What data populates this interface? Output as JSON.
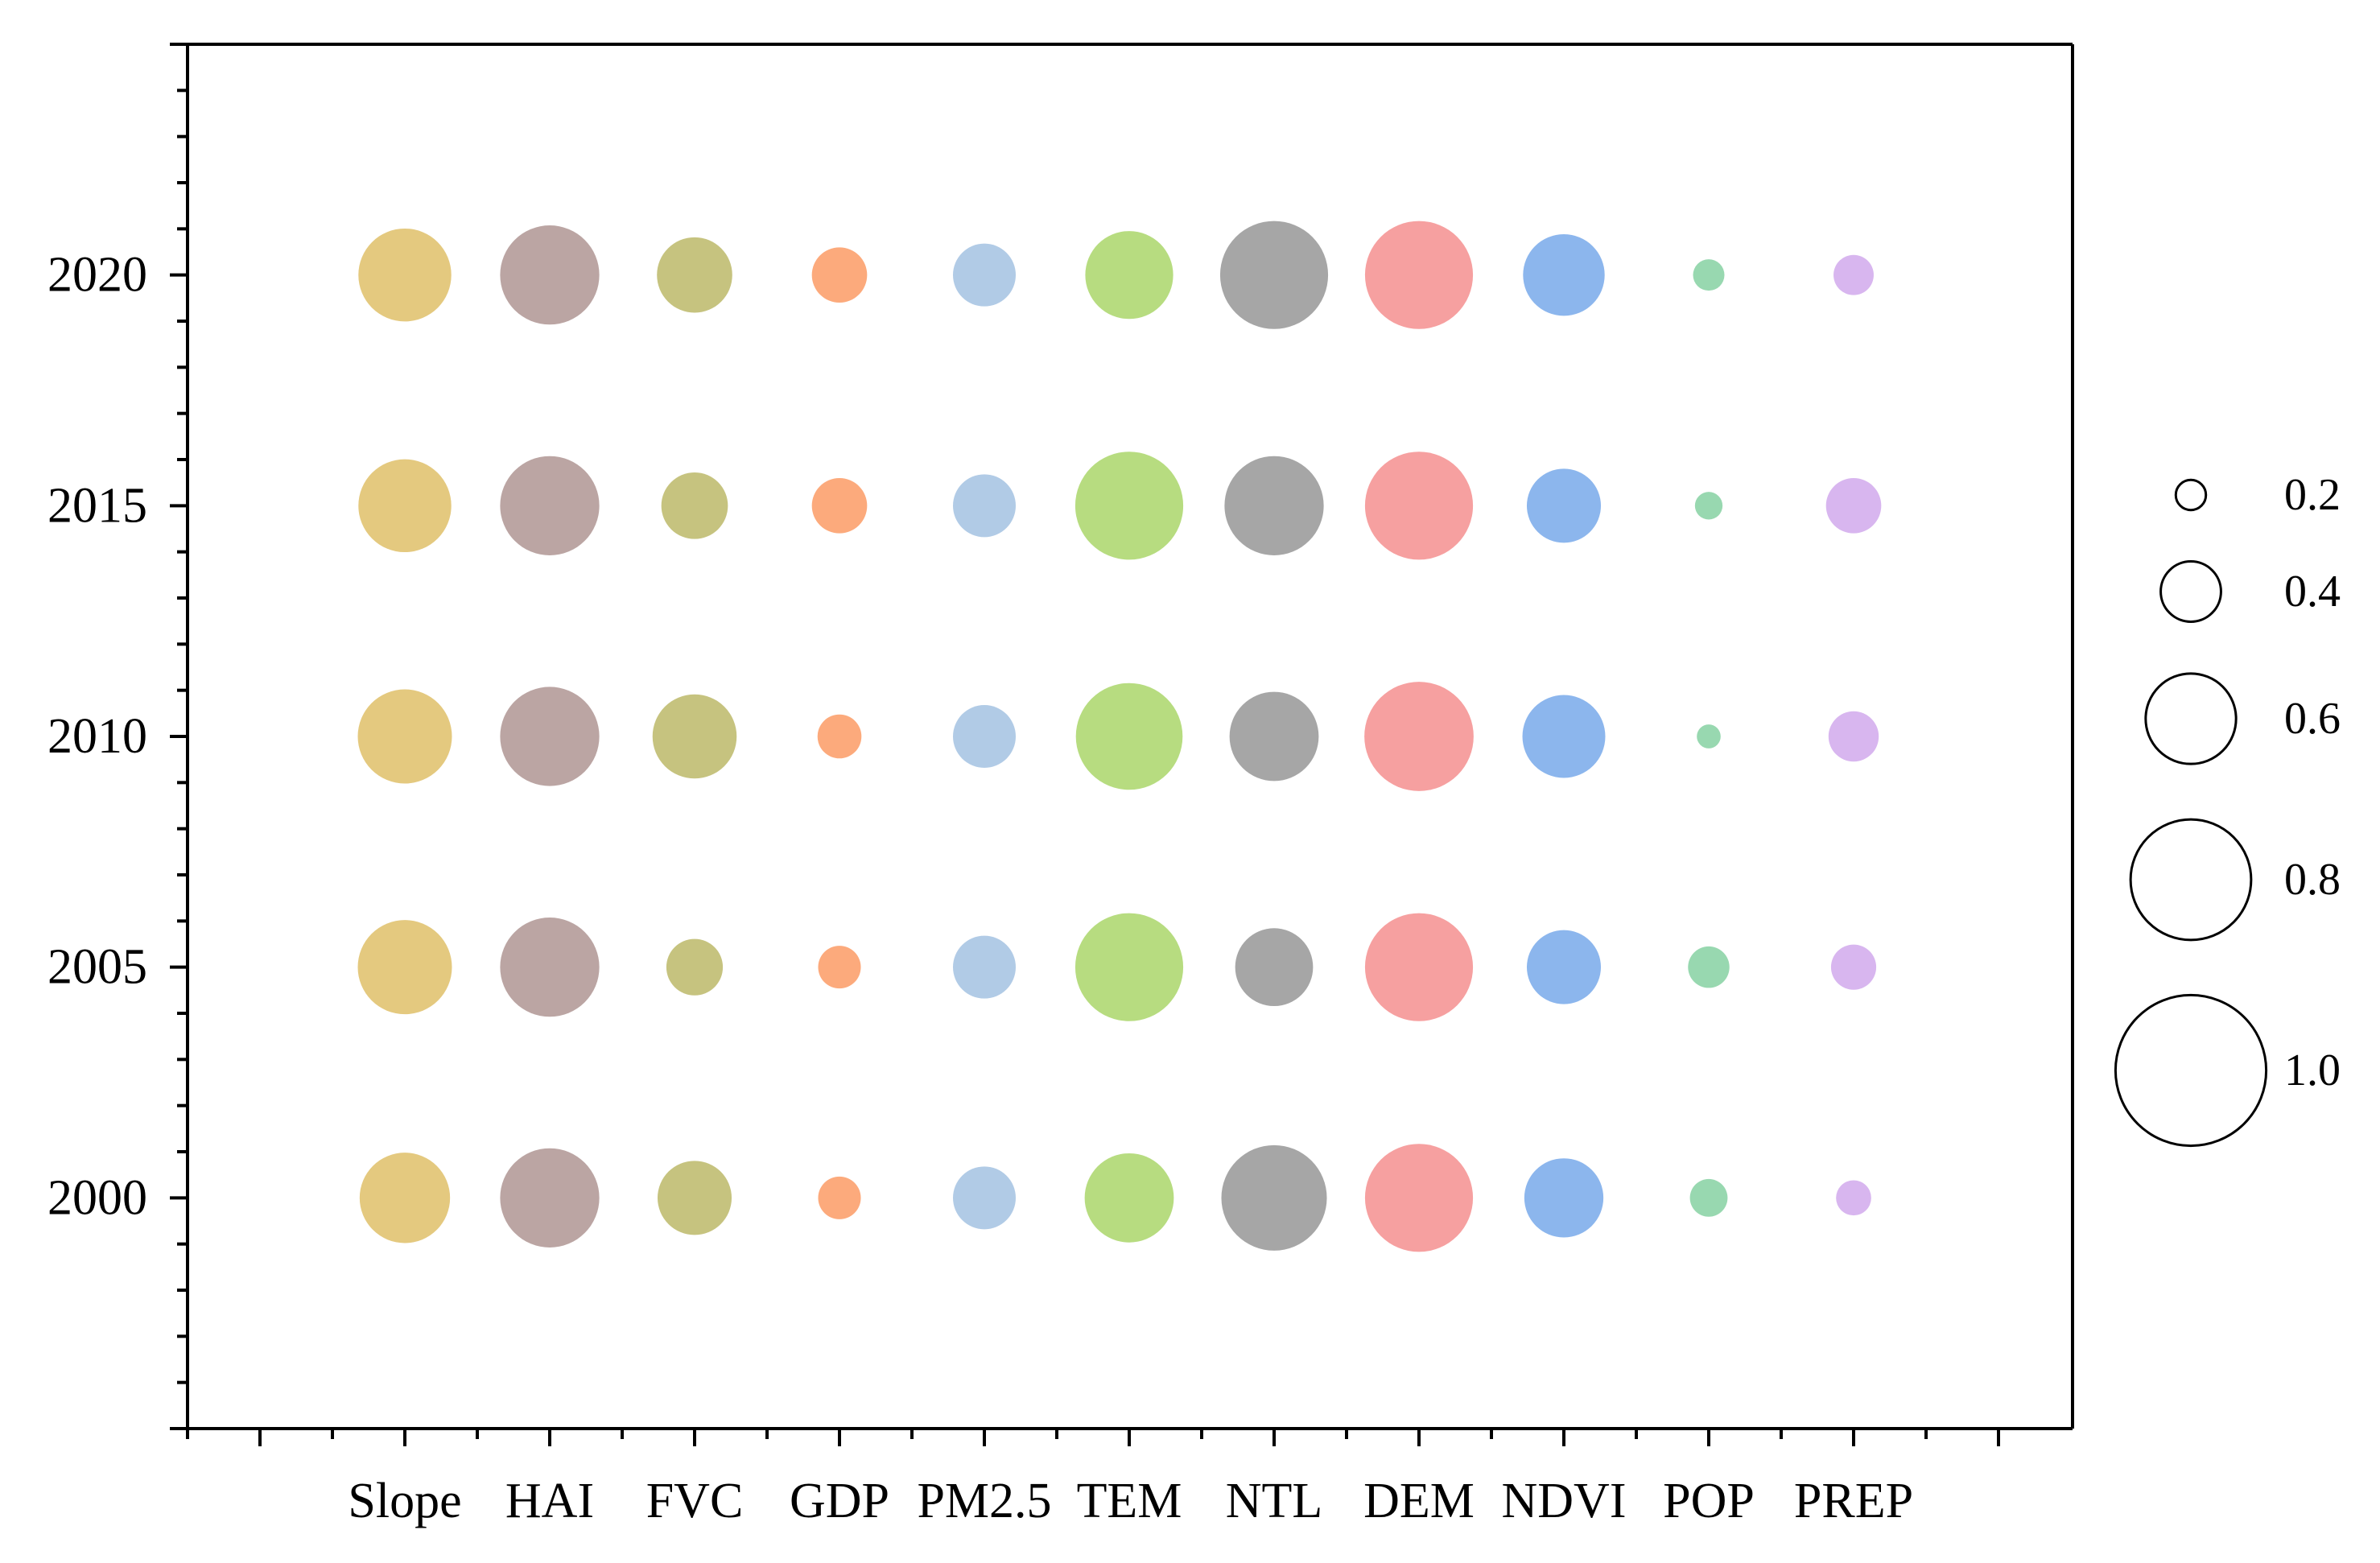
{
  "chart_data": {
    "type": "bubble",
    "categories": [
      "Slope",
      "HAI",
      "FVC",
      "GDP",
      "PM2.5",
      "TEM",
      "NTL",
      "DEM",
      "NDVI",
      "POP",
      "PREP"
    ],
    "years": [
      "2000",
      "2005",
      "2010",
      "2015",
      "2020"
    ],
    "ylim": [
      1995,
      2025
    ],
    "colors": {
      "Slope": "#e4c97f",
      "HAI": "#bba5a3",
      "FVC": "#c6c37f",
      "GDP": "#fcaa7c",
      "PM2.5": "#b1cbe6",
      "TEM": "#b7dc80",
      "NTL": "#a6a6a6",
      "DEM": "#f6a0a0",
      "NDVI": "#8cb6ed",
      "POP": "#98d8b0",
      "PREP": "#d8b6ef"
    },
    "values": {
      "2020": {
        "Slope": 0.74,
        "HAI": 0.79,
        "FVC": 0.6,
        "GDP": 0.44,
        "PM2.5": 0.5,
        "TEM": 0.7,
        "NTL": 0.86,
        "DEM": 0.86,
        "NDVI": 0.65,
        "POP": 0.25,
        "PREP": 0.32
      },
      "2015": {
        "Slope": 0.74,
        "HAI": 0.79,
        "FVC": 0.53,
        "GDP": 0.44,
        "PM2.5": 0.5,
        "TEM": 0.86,
        "NTL": 0.79,
        "DEM": 0.86,
        "NDVI": 0.59,
        "POP": 0.22,
        "PREP": 0.44
      },
      "2010": {
        "Slope": 0.75,
        "HAI": 0.79,
        "FVC": 0.67,
        "GDP": 0.35,
        "PM2.5": 0.5,
        "TEM": 0.85,
        "NTL": 0.71,
        "DEM": 0.87,
        "NDVI": 0.66,
        "POP": 0.19,
        "PREP": 0.4
      },
      "2005": {
        "Slope": 0.75,
        "HAI": 0.79,
        "FVC": 0.45,
        "GDP": 0.34,
        "PM2.5": 0.5,
        "TEM": 0.86,
        "NTL": 0.62,
        "DEM": 0.86,
        "NDVI": 0.59,
        "POP": 0.33,
        "PREP": 0.36
      },
      "2000": {
        "Slope": 0.72,
        "HAI": 0.79,
        "FVC": 0.59,
        "GDP": 0.34,
        "PM2.5": 0.5,
        "TEM": 0.71,
        "NTL": 0.84,
        "DEM": 0.86,
        "NDVI": 0.63,
        "POP": 0.3,
        "PREP": 0.28
      }
    },
    "legend": {
      "placement": "right",
      "values": [
        0.2,
        0.4,
        0.6,
        0.8,
        1.0
      ],
      "labels": [
        "0.2",
        "0.4",
        "0.6",
        "0.8",
        "1.0"
      ]
    },
    "yticks": [
      "2000",
      "2005",
      "2010",
      "2015",
      "2020"
    ],
    "title": "",
    "xlabel": "",
    "ylabel": ""
  }
}
